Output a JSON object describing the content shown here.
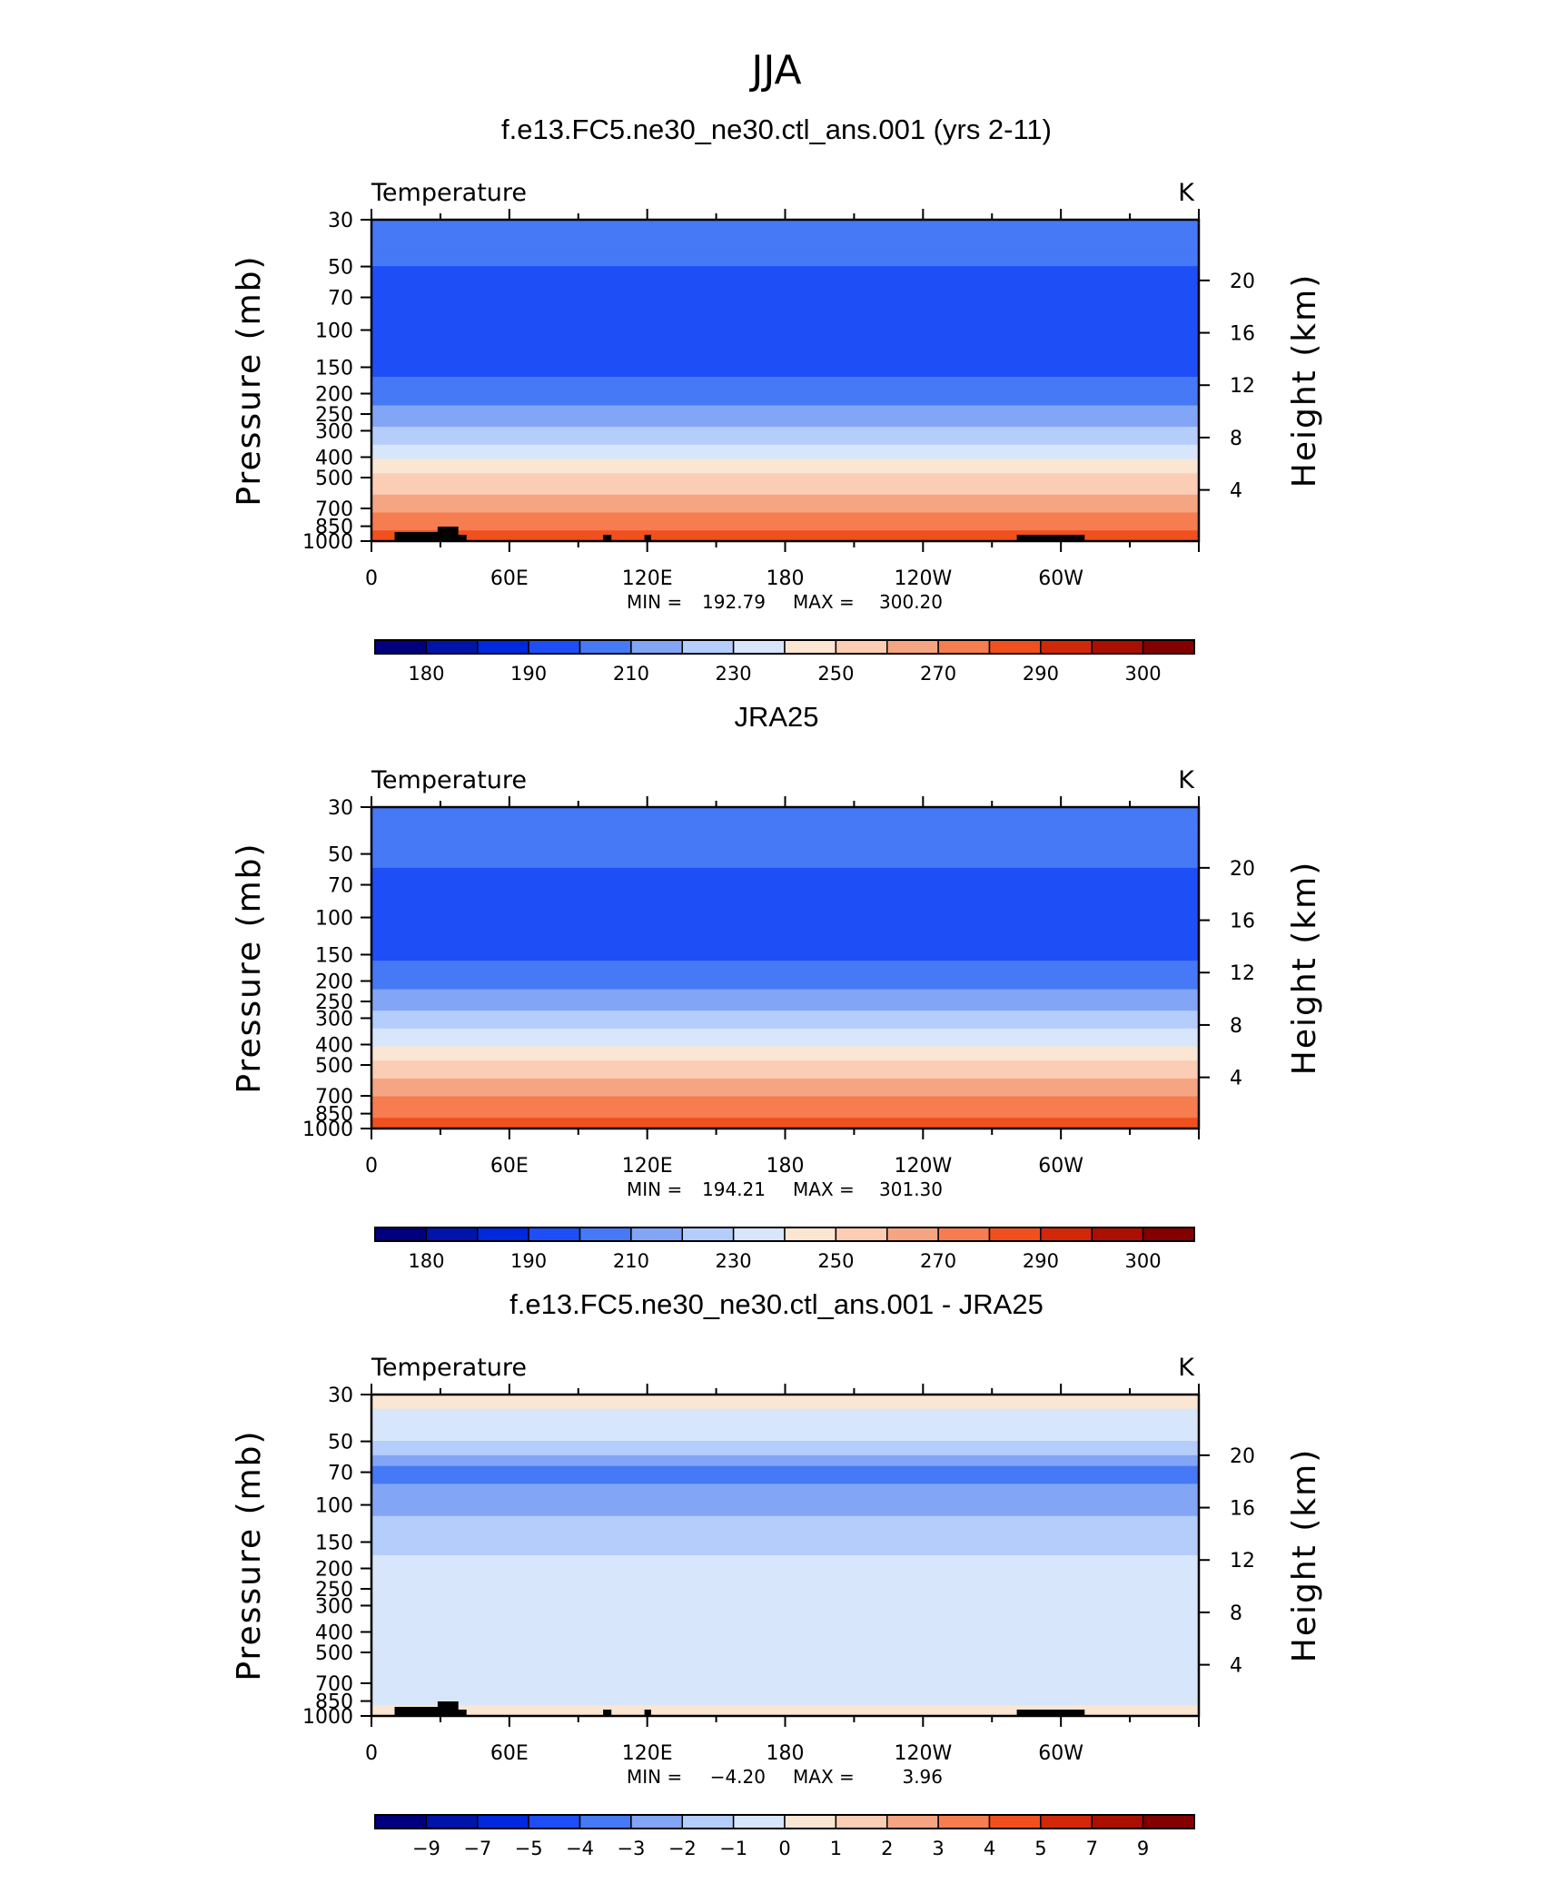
{
  "figure_title": "JJA",
  "chart_data": [
    {
      "type": "heatmap",
      "title": "f.e13.FC5.ne30_ne30.ctl_ans.001 (yrs 2-11)",
      "variable_label": "Temperature",
      "units_label": "K",
      "ylabel": "Pressure (mb)",
      "ylabel_right": "Height (km)",
      "x_ticks": [
        "0",
        "60E",
        "120E",
        "180",
        "120W",
        "60W"
      ],
      "y_ticks": [
        "30",
        "50",
        "70",
        "100",
        "150",
        "200",
        "250",
        "300",
        "400",
        "500",
        "700",
        "850",
        "1000"
      ],
      "y_ticks_right": [
        "20",
        "16",
        "12",
        "8",
        "4"
      ],
      "min_label": "MIN =",
      "min_value": "192.79",
      "max_label": "MAX =",
      "max_value": "300.20",
      "colorbar_labels": [
        "180",
        "190",
        "210",
        "230",
        "250",
        "270",
        "290",
        "300"
      ],
      "profile_levels": [
        30,
        50,
        70,
        100,
        150,
        200,
        250,
        300,
        400,
        500,
        700,
        850,
        1000
      ],
      "profile_values": [
        214,
        210,
        205,
        203,
        207,
        215,
        224,
        232,
        248,
        262,
        278,
        287,
        296
      ],
      "topography": true,
      "colors": [
        "#00007f",
        "#0014aa",
        "#0028dc",
        "#1e4ef5",
        "#4679f5",
        "#82a5f5",
        "#b4cdfa",
        "#d7e6fa",
        "#fae6d2",
        "#facdb4",
        "#f5a582",
        "#f57d50",
        "#f0501e",
        "#d2280a",
        "#aa0f00",
        "#820000"
      ]
    },
    {
      "type": "heatmap",
      "title": "JRA25",
      "variable_label": "Temperature",
      "units_label": "K",
      "ylabel": "Pressure (mb)",
      "ylabel_right": "Height (km)",
      "x_ticks": [
        "0",
        "60E",
        "120E",
        "180",
        "120W",
        "60W"
      ],
      "y_ticks": [
        "30",
        "50",
        "70",
        "100",
        "150",
        "200",
        "250",
        "300",
        "400",
        "500",
        "700",
        "850",
        "1000"
      ],
      "y_ticks_right": [
        "20",
        "16",
        "12",
        "8",
        "4"
      ],
      "min_label": "MIN =",
      "min_value": "194.21",
      "max_label": "MAX =",
      "max_value": "301.30",
      "colorbar_labels": [
        "180",
        "190",
        "210",
        "230",
        "250",
        "270",
        "290",
        "300"
      ],
      "profile_levels": [
        30,
        50,
        70,
        100,
        150,
        200,
        250,
        300,
        400,
        500,
        700,
        850,
        1000
      ],
      "profile_values": [
        215,
        212,
        208,
        204,
        208,
        216,
        225,
        233,
        249,
        263,
        279,
        288,
        297
      ],
      "topography": false,
      "colors": [
        "#00007f",
        "#0014aa",
        "#0028dc",
        "#1e4ef5",
        "#4679f5",
        "#82a5f5",
        "#b4cdfa",
        "#d7e6fa",
        "#fae6d2",
        "#facdb4",
        "#f5a582",
        "#f57d50",
        "#f0501e",
        "#d2280a",
        "#aa0f00",
        "#820000"
      ]
    },
    {
      "type": "heatmap",
      "title": "f.e13.FC5.ne30_ne30.ctl_ans.001 - JRA25",
      "variable_label": "Temperature",
      "units_label": "K",
      "ylabel": "Pressure (mb)",
      "ylabel_right": "Height (km)",
      "x_ticks": [
        "0",
        "60E",
        "120E",
        "180",
        "120W",
        "60W"
      ],
      "y_ticks": [
        "30",
        "50",
        "70",
        "100",
        "150",
        "200",
        "250",
        "300",
        "400",
        "500",
        "700",
        "850",
        "1000"
      ],
      "y_ticks_right": [
        "20",
        "16",
        "12",
        "8",
        "4"
      ],
      "min_label": "MIN =",
      "min_value": "−4.20",
      "max_label": "MAX =",
      "max_value": "3.96",
      "colorbar_labels": [
        "−9",
        "−7",
        "−5",
        "−4",
        "−3",
        "−2",
        "−1",
        "0",
        "1",
        "2",
        "3",
        "4",
        "5",
        "7",
        "9"
      ],
      "profile_levels": [
        30,
        50,
        70,
        100,
        150,
        200,
        250,
        300,
        400,
        500,
        700,
        850,
        1000
      ],
      "profile_values": [
        0.5,
        -1.0,
        -3.5,
        -2.2,
        -1.5,
        -0.5,
        -0.5,
        -0.7,
        -0.6,
        -0.6,
        -1.0,
        -0.2,
        0.5
      ],
      "topography": true,
      "colors": [
        "#00007f",
        "#0014aa",
        "#0028dc",
        "#1e4ef5",
        "#4679f5",
        "#82a5f5",
        "#b4cdfa",
        "#d7e6fa",
        "#fae6d2",
        "#facdb4",
        "#f5a582",
        "#f57d50",
        "#f0501e",
        "#d2280a",
        "#aa0f00",
        "#820000"
      ]
    }
  ]
}
